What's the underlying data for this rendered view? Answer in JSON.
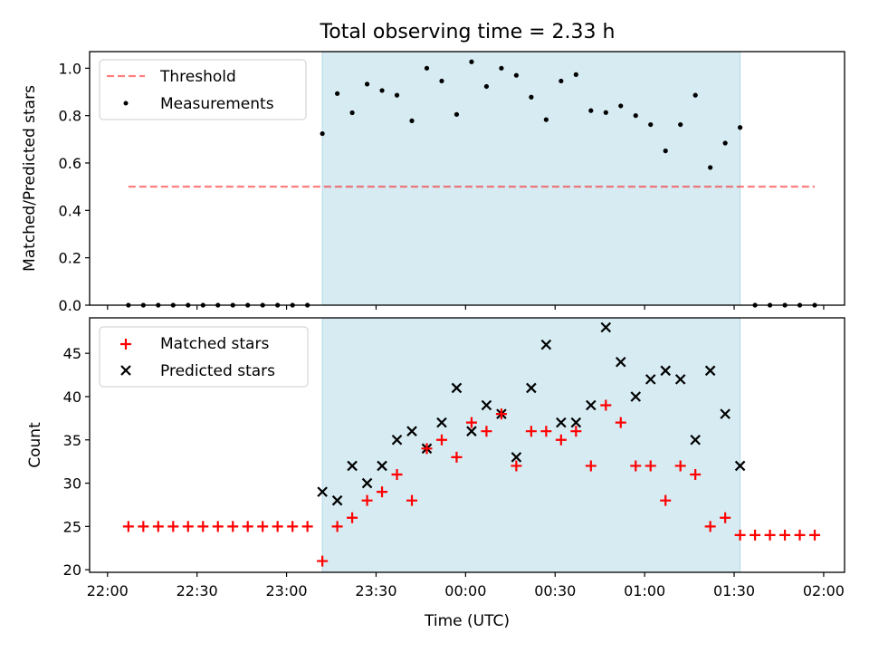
{
  "figure_title": "Total observing time = 2.33 h",
  "colors": {
    "window": "#add8e6",
    "threshold": "#ff0000",
    "matched": "#ff0000",
    "predicted": "#000000",
    "measurement": "#000000"
  },
  "chart_data": [
    {
      "type": "scatter",
      "title": "Total observing time = 2.33 h",
      "xlabel": "",
      "ylabel": "Matched/Predicted stars",
      "x_unit": "time (UTC)",
      "xlim": [
        "22:00",
        "02:00"
      ],
      "ylim": [
        0.0,
        1.07
      ],
      "yticks": [
        "0.0",
        "0.2",
        "0.4",
        "0.6",
        "0.8",
        "1.0"
      ],
      "grid": false,
      "legend_position": "upper-left",
      "shaded_window": [
        "23:12",
        "01:32"
      ],
      "series": [
        {
          "name": "Threshold",
          "kind": "dashed-line",
          "x": [
            "22:07",
            "01:57"
          ],
          "y": [
            0.5,
            0.5
          ]
        },
        {
          "name": "Measurements",
          "kind": "dots",
          "x": [
            "22:07",
            "22:12",
            "22:17",
            "22:22",
            "22:27",
            "22:32",
            "22:37",
            "22:42",
            "22:47",
            "22:52",
            "22:57",
            "23:02",
            "23:07",
            "23:12",
            "23:17",
            "23:22",
            "23:27",
            "23:32",
            "23:37",
            "23:42",
            "23:47",
            "23:52",
            "23:57",
            "00:02",
            "00:07",
            "00:12",
            "00:17",
            "00:22",
            "00:27",
            "00:32",
            "00:37",
            "00:42",
            "00:47",
            "00:52",
            "00:57",
            "01:02",
            "01:07",
            "01:12",
            "01:17",
            "01:22",
            "01:27",
            "01:32",
            "01:37",
            "01:42",
            "01:47",
            "01:52",
            "01:57"
          ],
          "y": [
            0,
            0,
            0,
            0,
            0,
            0,
            0,
            0,
            0,
            0,
            0,
            0,
            0,
            0.724,
            0.893,
            0.812,
            0.933,
            0.906,
            0.886,
            0.778,
            1.0,
            0.946,
            0.805,
            1.027,
            0.923,
            1.0,
            0.97,
            0.878,
            0.783,
            0.946,
            0.973,
            0.821,
            0.813,
            0.841,
            0.8,
            0.762,
            0.651,
            0.762,
            0.886,
            0.581,
            0.684,
            0.75,
            0,
            0,
            0,
            0,
            0
          ]
        }
      ]
    },
    {
      "type": "scatter",
      "xlabel": "Time (UTC)",
      "ylabel": "Count",
      "x_unit": "time (UTC)",
      "xlim": [
        "22:00",
        "02:00"
      ],
      "ylim": [
        19.7,
        49.1
      ],
      "xticks": [
        "22:00",
        "22:30",
        "23:00",
        "23:30",
        "00:00",
        "00:30",
        "01:00",
        "01:30",
        "02:00"
      ],
      "yticks": [
        "20",
        "25",
        "30",
        "35",
        "40",
        "45"
      ],
      "grid": false,
      "legend_position": "upper-left",
      "shaded_window": [
        "23:12",
        "01:32"
      ],
      "series": [
        {
          "name": "Matched stars",
          "marker": "+",
          "x": [
            "22:07",
            "22:12",
            "22:17",
            "22:22",
            "22:27",
            "22:32",
            "22:37",
            "22:42",
            "22:47",
            "22:52",
            "22:57",
            "23:02",
            "23:07",
            "23:12",
            "23:17",
            "23:22",
            "23:27",
            "23:32",
            "23:37",
            "23:42",
            "23:47",
            "23:52",
            "23:57",
            "00:02",
            "00:07",
            "00:12",
            "00:17",
            "00:22",
            "00:27",
            "00:32",
            "00:37",
            "00:42",
            "00:47",
            "00:52",
            "00:57",
            "01:02",
            "01:07",
            "01:12",
            "01:17",
            "01:22",
            "01:27",
            "01:32",
            "01:37",
            "01:42",
            "01:47",
            "01:52",
            "01:57"
          ],
          "y": [
            25,
            25,
            25,
            25,
            25,
            25,
            25,
            25,
            25,
            25,
            25,
            25,
            25,
            21,
            25,
            26,
            28,
            29,
            31,
            28,
            34,
            35,
            33,
            37,
            36,
            38,
            32,
            36,
            36,
            35,
            36,
            32,
            39,
            37,
            32,
            32,
            28,
            32,
            31,
            25,
            26,
            24,
            24,
            24,
            24,
            24,
            24
          ]
        },
        {
          "name": "Predicted stars",
          "marker": "x",
          "x": [
            "23:12",
            "23:17",
            "23:22",
            "23:27",
            "23:32",
            "23:37",
            "23:42",
            "23:47",
            "23:52",
            "23:57",
            "00:02",
            "00:07",
            "00:12",
            "00:17",
            "00:22",
            "00:27",
            "00:32",
            "00:37",
            "00:42",
            "00:47",
            "00:52",
            "00:57",
            "01:02",
            "01:07",
            "01:12",
            "01:17",
            "01:22",
            "01:27",
            "01:32"
          ],
          "y": [
            29,
            28,
            32,
            30,
            32,
            35,
            36,
            34,
            37,
            41,
            36,
            39,
            38,
            33,
            41,
            46,
            37,
            37,
            39,
            48,
            44,
            40,
            42,
            43,
            42,
            35,
            43,
            38,
            32
          ]
        }
      ]
    }
  ]
}
